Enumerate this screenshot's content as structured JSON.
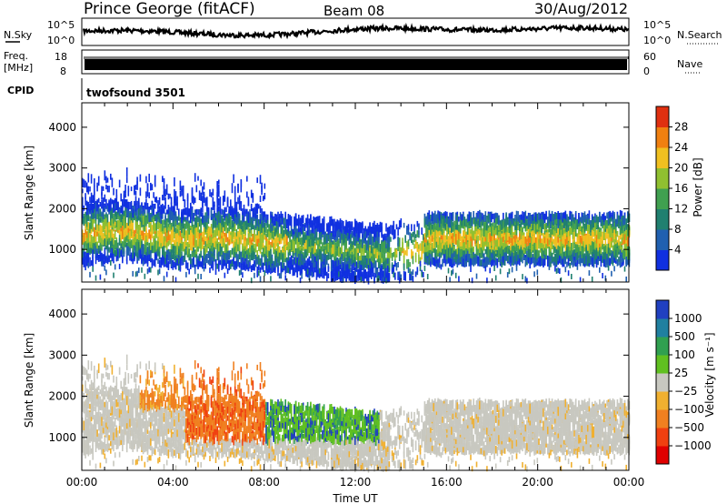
{
  "header": {
    "station": "Prince George (fitACF)",
    "beam": "Beam 08",
    "date": "30/Aug/2012"
  },
  "noise_panel": {
    "left_label": "N.Sky",
    "right_label": "N.Search",
    "left_ticks": [
      "10^5",
      "10^0"
    ],
    "right_ticks": [
      "10^5",
      "10^0"
    ]
  },
  "freq_panel": {
    "left_label_1": "Freq.",
    "left_label_2": "[MHz]",
    "right_label": "Nave",
    "left_ticks": [
      "18",
      "8"
    ],
    "right_ticks": [
      "60",
      "0"
    ]
  },
  "cpid_panel": {
    "label": "CPID",
    "value": "twofsound 3501"
  },
  "chart_data": [
    {
      "type": "heatmap",
      "name": "power",
      "ylabel": "Slant Range [km]",
      "yticks": [
        "1000",
        "2000",
        "3000",
        "4000"
      ],
      "ylim": [
        200,
        4600
      ],
      "xlim": [
        0,
        24
      ],
      "colorbar": {
        "label": "Power [dB]",
        "ticks": [
          "4",
          "8",
          "12",
          "16",
          "20",
          "24",
          "28"
        ],
        "colors": [
          "#1030e0",
          "#2060b0",
          "#208070",
          "#40a050",
          "#90c030",
          "#f0c020",
          "#f08010",
          "#e03010"
        ]
      }
    },
    {
      "type": "heatmap",
      "name": "velocity",
      "ylabel": "Slant Range [km]",
      "yticks": [
        "1000",
        "2000",
        "3000",
        "4000"
      ],
      "ylim": [
        200,
        4600
      ],
      "xlim": [
        0,
        24
      ],
      "xticks": [
        "00:00",
        "04:00",
        "08:00",
        "12:00",
        "16:00",
        "20:00",
        "00:00"
      ],
      "xlabel": "Time UT",
      "colorbar": {
        "label": "Velocity [m s⁻¹]",
        "ticks": [
          "1000",
          "500",
          "100",
          "25",
          "−25",
          "−100",
          "−500",
          "−1000"
        ],
        "colors": [
          "#2040c0",
          "#2080a0",
          "#30a050",
          "#60c020",
          "#c8c8c0",
          "#f0b030",
          "#f08020",
          "#f04010",
          "#e00000"
        ]
      }
    }
  ]
}
